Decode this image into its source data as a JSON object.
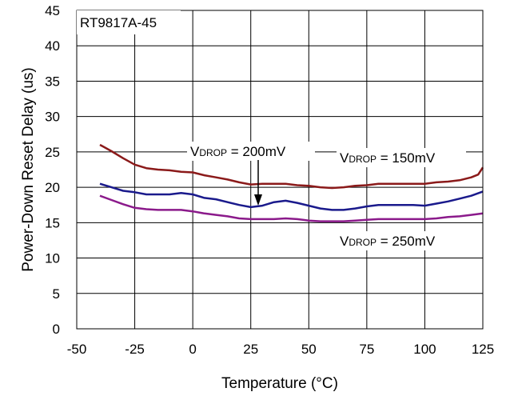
{
  "chart_data": {
    "type": "line",
    "title": "RT9817A-45",
    "xlabel": "Temperature (°C)",
    "ylabel": "Power-Down Reset Delay (us)",
    "xlim": [
      -50,
      125
    ],
    "ylim": [
      0,
      45
    ],
    "xticks": [
      -50,
      -25,
      0,
      25,
      50,
      75,
      100,
      125
    ],
    "yticks": [
      0,
      5,
      10,
      15,
      20,
      25,
      30,
      35,
      40,
      45
    ],
    "grid": true,
    "series": [
      {
        "name": "VDROP = 150mV",
        "color": "#8B1A1A",
        "x": [
          -40,
          -35,
          -30,
          -25,
          -20,
          -15,
          -10,
          -5,
          0,
          5,
          10,
          15,
          20,
          25,
          30,
          35,
          40,
          45,
          50,
          55,
          60,
          65,
          70,
          75,
          80,
          85,
          90,
          95,
          100,
          105,
          110,
          115,
          120,
          123,
          125
        ],
        "y": [
          26.0,
          25.1,
          24.1,
          23.2,
          22.7,
          22.5,
          22.4,
          22.2,
          22.1,
          21.7,
          21.4,
          21.1,
          20.7,
          20.4,
          20.5,
          20.5,
          20.5,
          20.3,
          20.2,
          20.0,
          19.9,
          20.0,
          20.2,
          20.3,
          20.5,
          20.5,
          20.5,
          20.5,
          20.5,
          20.7,
          20.8,
          21.0,
          21.4,
          21.8,
          22.8
        ]
      },
      {
        "name": "VDROP = 200mV",
        "color": "#1A1A8C",
        "x": [
          -40,
          -35,
          -30,
          -25,
          -20,
          -15,
          -10,
          -5,
          0,
          5,
          10,
          15,
          20,
          25,
          30,
          35,
          40,
          45,
          50,
          55,
          60,
          65,
          70,
          75,
          80,
          85,
          90,
          95,
          100,
          105,
          110,
          115,
          120,
          125
        ],
        "y": [
          20.5,
          20.0,
          19.5,
          19.3,
          19.0,
          19.0,
          19.0,
          19.2,
          19.0,
          18.5,
          18.3,
          17.9,
          17.5,
          17.2,
          17.4,
          17.9,
          18.1,
          17.8,
          17.4,
          17.0,
          16.8,
          16.8,
          17.0,
          17.3,
          17.5,
          17.5,
          17.5,
          17.5,
          17.4,
          17.7,
          18.0,
          18.4,
          18.8,
          19.4
        ]
      },
      {
        "name": "VDROP = 250mV",
        "color": "#8B1A8B",
        "x": [
          -40,
          -35,
          -30,
          -25,
          -20,
          -15,
          -10,
          -5,
          0,
          5,
          10,
          15,
          20,
          25,
          30,
          35,
          40,
          45,
          50,
          55,
          60,
          65,
          70,
          75,
          80,
          85,
          90,
          95,
          100,
          105,
          110,
          115,
          120,
          125
        ],
        "y": [
          18.8,
          18.2,
          17.6,
          17.1,
          16.9,
          16.8,
          16.8,
          16.8,
          16.6,
          16.3,
          16.1,
          15.9,
          15.6,
          15.5,
          15.5,
          15.5,
          15.6,
          15.5,
          15.3,
          15.2,
          15.2,
          15.2,
          15.3,
          15.4,
          15.5,
          15.5,
          15.5,
          15.5,
          15.5,
          15.6,
          15.8,
          15.9,
          16.1,
          16.3
        ]
      }
    ],
    "annotations": [
      {
        "main": "V",
        "sub": "DROP",
        "rest": " = 200mV",
        "arrow_to": [
          30,
          17.6
        ]
      },
      {
        "main": "V",
        "sub": "DROP",
        "rest": " = 150mV"
      },
      {
        "main": "V",
        "sub": "DROP",
        "rest": " = 250mV"
      }
    ]
  }
}
